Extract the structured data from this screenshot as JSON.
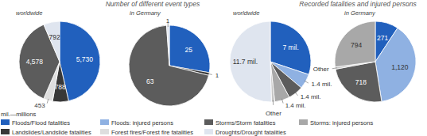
{
  "headings": [
    "Number of different event types",
    "Recorded fatalities and injured persons"
  ],
  "note": "mil.—millions",
  "legend_items": [
    {
      "name": "Floods/Flood fatalities",
      "color": "#2160bd"
    },
    {
      "name": "Floods: injured persons",
      "color": "#8fb1e2"
    },
    {
      "name": "Storms/Storm fatalities",
      "color": "#5c5c5c"
    },
    {
      "name": "Storms: injured persons",
      "color": "#a8a8a8"
    },
    {
      "name": "Landslides/Landslide fatalities",
      "color": "#383838"
    },
    {
      "name": "Forest fires/Forest fire fatalities",
      "color": "#dedede"
    },
    {
      "name": "Droughts/Drought fatalities",
      "color": "#dfe5ef"
    }
  ],
  "chart_data": [
    {
      "type": "pie",
      "title": "worldwide",
      "data_labels": true,
      "categories": [
        "Floods/Flood fatalities",
        "Landslides/Landslide fatalities",
        "Forest fires/Forest fire fatalities",
        "Storms/Storm fatalities",
        "Droughts/Drought fatalities"
      ],
      "values": [
        5730,
        788,
        453,
        4578,
        792
      ],
      "value_labels": [
        "5,730",
        "788",
        "453",
        "4,578",
        "792"
      ],
      "colors": [
        "#2160bd",
        "#383838",
        "#dedede",
        "#5c5c5c",
        "#dfe5ef"
      ]
    },
    {
      "type": "pie",
      "title": "in Germany",
      "data_labels": true,
      "categories": [
        "Floods/Flood fatalities",
        "Landslides/Landslide fatalities",
        "Storms/Storm fatalities",
        "Droughts/Drought fatalities"
      ],
      "values": [
        25,
        1,
        63,
        1
      ],
      "colors": [
        "#2160bd",
        "#383838",
        "#5c5c5c",
        "#dfe5ef"
      ]
    },
    {
      "type": "pie",
      "title": "worldwide",
      "data_labels": true,
      "categories": [
        "Floods/Flood fatalities",
        "Floods: injured persons",
        "Storms/Storm fatalities",
        "Storms: injured persons",
        "Other",
        "Droughts/Drought fatalities"
      ],
      "values": [
        7,
        1.4,
        1.4,
        1.4,
        0.3,
        11.7
      ],
      "value_labels": [
        "7 mil.",
        "1.4 mil.",
        "1.4 mil.",
        "1.4 mil.",
        null,
        "11.7 mil."
      ],
      "colors": [
        "#2160bd",
        "#8fb1e2",
        "#5c5c5c",
        "#a8a8a8",
        "#c6c6c6",
        "#dfe5ef"
      ]
    },
    {
      "type": "pie",
      "title": "in Germany",
      "data_labels": true,
      "categories": [
        "Floods/Flood fatalities",
        "Floods: injured persons",
        "Storms/Storm fatalities",
        "Other",
        "Storms: injured persons"
      ],
      "values": [
        271,
        1120,
        718,
        25,
        794
      ],
      "value_labels": [
        "271",
        "1,120",
        "718",
        null,
        "794"
      ],
      "colors": [
        "#2160bd",
        "#8fb1e2",
        "#5c5c5c",
        "#c6c6c6",
        "#a8a8a8"
      ]
    }
  ]
}
